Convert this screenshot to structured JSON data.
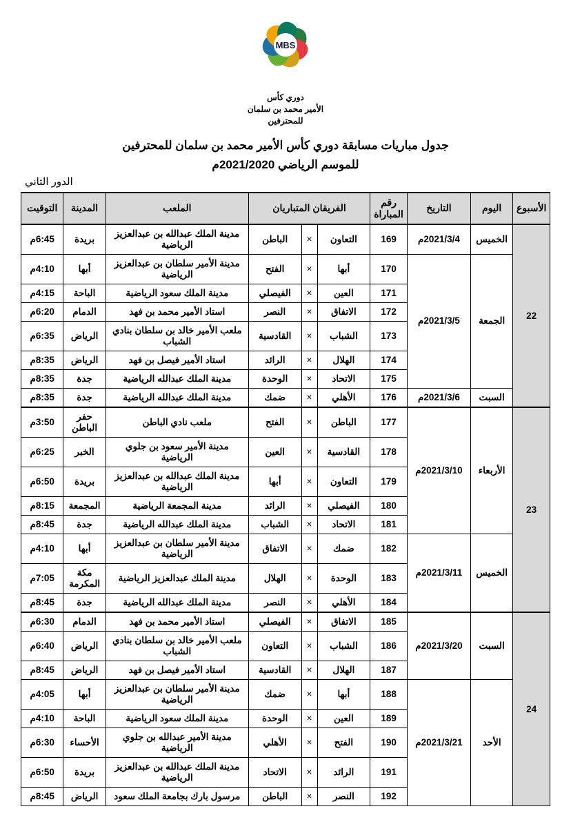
{
  "logo": {
    "abbr": "MBS",
    "line1": "دوري كأس",
    "line2": "الأمير محمد بن سلمان",
    "line3": "للمحترفين",
    "petal_colors": [
      "#2b7a3f",
      "#e63946",
      "#d4a017",
      "#66b032",
      "#1f6fa8",
      "#f4a300",
      "#0a7a5e"
    ]
  },
  "title_line1": "جدول مباريات مسابقة دوري كأس الأمير محمد بن سلمان للمحترفين",
  "title_line2": "للموسم الرياضي 2021/2020م",
  "round_label": "الدور الثاني",
  "headers": {
    "week": "الأسبوع",
    "day": "اليوم",
    "date": "التاريخ",
    "num": "رقم المباراة",
    "teams": "الفريقان المتباريان",
    "venue": "الملعب",
    "city": "المدينة",
    "time": "التوقيت"
  },
  "vs": "×",
  "weeks": [
    {
      "week": "22",
      "groups": [
        {
          "day": "الخميس",
          "date": "2021/3/4م",
          "matches": [
            {
              "num": "169",
              "t1": "التعاون",
              "t2": "الباطن",
              "venue": "مدينة الملك عبدالله بن عبدالعزيز الرياضية",
              "city": "بريدة",
              "time": "6:45م"
            }
          ]
        },
        {
          "day": "الجمعة",
          "date": "2021/3/5م",
          "matches": [
            {
              "num": "170",
              "t1": "أبها",
              "t2": "الفتح",
              "venue": "مدينة الأمير سلطان بن عبدالعزيز الرياضية",
              "city": "أبها",
              "time": "4:10م"
            },
            {
              "num": "171",
              "t1": "العين",
              "t2": "الفيصلي",
              "venue": "مدينة الملك سعود الرياضية",
              "city": "الباحة",
              "time": "4:15م"
            },
            {
              "num": "172",
              "t1": "الاتفاق",
              "t2": "النصر",
              "venue": "استاد الأمير محمد بن فهد",
              "city": "الدمام",
              "time": "6:20م"
            },
            {
              "num": "173",
              "t1": "الشباب",
              "t2": "القادسية",
              "venue": "ملعب الأمير خالد بن سلطان بنادي الشباب",
              "city": "الرياض",
              "time": "6:35م"
            },
            {
              "num": "174",
              "t1": "الهلال",
              "t2": "الرائد",
              "venue": "استاد الأمير فيصل بن فهد",
              "city": "الرياض",
              "time": "8:35م"
            },
            {
              "num": "175",
              "t1": "الاتحاد",
              "t2": "الوحدة",
              "venue": "مدينة الملك عبدالله الرياضية",
              "city": "جدة",
              "time": "8:35م"
            }
          ]
        },
        {
          "day": "السبت",
          "date": "2021/3/6م",
          "matches": [
            {
              "num": "176",
              "t1": "الأهلي",
              "t2": "ضمك",
              "venue": "مدينة الملك عبدالله الرياضية",
              "city": "جدة",
              "time": "8:35م"
            }
          ]
        }
      ]
    },
    {
      "week": "23",
      "groups": [
        {
          "day": "الأربعاء",
          "date": "2021/3/10م",
          "matches": [
            {
              "num": "177",
              "t1": "الباطن",
              "t2": "الفتح",
              "venue": "ملعب نادي الباطن",
              "city": "حفر الباطن",
              "time": "3:50م"
            },
            {
              "num": "178",
              "t1": "القادسية",
              "t2": "العين",
              "venue": "مدينة الأمير سعود بن جلوي الرياضية",
              "city": "الخبر",
              "time": "6:25م"
            },
            {
              "num": "179",
              "t1": "التعاون",
              "t2": "أبها",
              "venue": "مدينة الملك عبدالله بن عبدالعزيز الرياضية",
              "city": "بريدة",
              "time": "6:50م"
            },
            {
              "num": "180",
              "t1": "الفيصلي",
              "t2": "الرائد",
              "venue": "مدينة المجمعة الرياضية",
              "city": "المجمعة",
              "time": "8:15م"
            },
            {
              "num": "181",
              "t1": "الاتحاد",
              "t2": "الشباب",
              "venue": "مدينة الملك عبدالله الرياضية",
              "city": "جدة",
              "time": "8:45م"
            }
          ]
        },
        {
          "day": "الخميس",
          "date": "2021/3/11م",
          "matches": [
            {
              "num": "182",
              "t1": "ضمك",
              "t2": "الاتفاق",
              "venue": "مدينة الأمير سلطان بن عبدالعزيز الرياضية",
              "city": "أبها",
              "time": "4:10م"
            },
            {
              "num": "183",
              "t1": "الوحدة",
              "t2": "الهلال",
              "venue": "مدينة الملك عبدالعزيز الرياضية",
              "city": "مكة المكرمة",
              "time": "7:05م"
            },
            {
              "num": "184",
              "t1": "الأهلي",
              "t2": "النصر",
              "venue": "مدينة الملك عبدالله الرياضية",
              "city": "جدة",
              "time": "8:45م"
            }
          ]
        }
      ]
    },
    {
      "week": "24",
      "groups": [
        {
          "day": "السبت",
          "date": "2021/3/20م",
          "matches": [
            {
              "num": "185",
              "t1": "الاتفاق",
              "t2": "الفيصلي",
              "venue": "استاد الأمير محمد بن فهد",
              "city": "الدمام",
              "time": "6:30م"
            },
            {
              "num": "186",
              "t1": "الشباب",
              "t2": "التعاون",
              "venue": "ملعب الأمير خالد بن سلطان بنادي الشباب",
              "city": "الرياض",
              "time": "6:40م"
            },
            {
              "num": "187",
              "t1": "الهلال",
              "t2": "القادسية",
              "venue": "استاد الأمير فيصل بن فهد",
              "city": "الرياض",
              "time": "8:45م"
            }
          ]
        },
        {
          "day": "الأحد",
          "date": "2021/3/21م",
          "matches": [
            {
              "num": "188",
              "t1": "أبها",
              "t2": "ضمك",
              "venue": "مدينة الأمير سلطان بن عبدالعزيز الرياضية",
              "city": "أبها",
              "time": "4:05م"
            },
            {
              "num": "189",
              "t1": "العين",
              "t2": "الوحدة",
              "venue": "مدينة الملك سعود الرياضية",
              "city": "الباحة",
              "time": "4:10م"
            },
            {
              "num": "190",
              "t1": "الفتح",
              "t2": "الأهلي",
              "venue": "مدينة الأمير عبدالله بن جلوي الرياضية",
              "city": "الأحساء",
              "time": "6:30م"
            },
            {
              "num": "191",
              "t1": "الرائد",
              "t2": "الاتحاد",
              "venue": "مدينة الملك عبدالله بن عبدالعزيز الرياضية",
              "city": "بريدة",
              "time": "6:50م"
            },
            {
              "num": "192",
              "t1": "النصر",
              "t2": "الباطن",
              "venue": "مرسول بارك بجامعة الملك سعود",
              "city": "الرياض",
              "time": "8:45م"
            }
          ]
        }
      ]
    }
  ]
}
